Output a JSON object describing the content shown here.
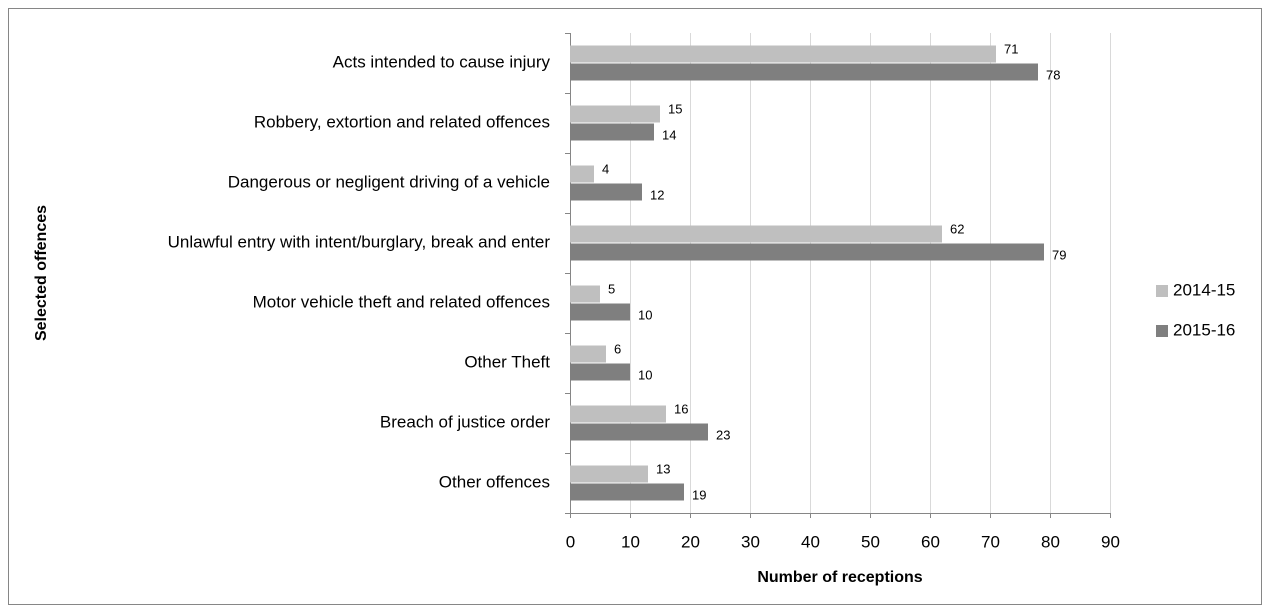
{
  "chart_data": {
    "type": "hbar",
    "categories": [
      "Acts intended to cause injury",
      "Robbery, extortion and related offences",
      "Dangerous or negligent driving of a vehicle",
      "Unlawful entry with intent/burglary, break and enter",
      "Motor vehicle theft and related offences",
      "Other Theft",
      "Breach of justice order",
      "Other offences"
    ],
    "series": [
      {
        "name": "2014-15",
        "color": "#bfbfbf",
        "values": [
          71,
          15,
          4,
          62,
          5,
          6,
          16,
          13
        ]
      },
      {
        "name": "2015-16",
        "color": "#7f7f7f",
        "values": [
          78,
          14,
          12,
          79,
          10,
          10,
          23,
          19
        ]
      }
    ],
    "xlabel": "Number of receptions",
    "ylabel": "Selected offences",
    "xlim": [
      0,
      90
    ],
    "xticks": [
      0,
      10,
      20,
      30,
      40,
      50,
      60,
      70,
      80,
      90
    ],
    "grid": true,
    "legend": "right"
  }
}
